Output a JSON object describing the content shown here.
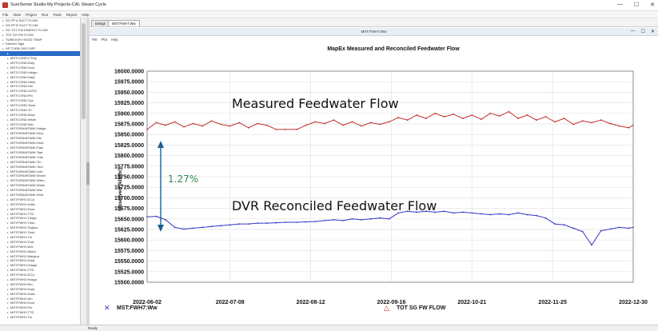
{
  "window": {
    "title": "SureSense Studio-My Projects-CAL Steam Cycle",
    "minimize": "—",
    "maximize": "☐",
    "close": "✕"
  },
  "menu": [
    "File",
    "View",
    "Project",
    "Run",
    "Tools",
    "Report",
    "Help"
  ],
  "tree": {
    "items": [
      {
        "label": "SG PP A SUCT FLOW",
        "expanded": false,
        "selected": false
      },
      {
        "label": "SG PP B SUCT FLOW",
        "expanded": false,
        "selected": false
      },
      {
        "label": "SG TOT FW ENERGY FLOW",
        "expanded": false,
        "selected": false
      },
      {
        "label": "TOT SG FW FLOW",
        "expanded": false,
        "selected": false
      },
      {
        "label": "TURB EXH HOOD TEMP",
        "expanded": false,
        "selected": false
      },
      {
        "label": "Derived Tags",
        "expanded": true,
        "selected": false
      },
      {
        "label": "HP TURB GRO DIFF",
        "expanded": false,
        "selected": false
      },
      {
        "label": "",
        "expanded": false,
        "selected": true
      },
      {
        "label": "MST:COND:CTmp",
        "expanded": false,
        "selected": false
      },
      {
        "label": "MST:COND:Duty",
        "expanded": false,
        "selected": false
      },
      {
        "label": "MST:COND:Hcur",
        "expanded": false,
        "selected": false
      },
      {
        "label": "MST:COND:Hdsgn",
        "expanded": false,
        "selected": false
      },
      {
        "label": "MST:COND:Hadj",
        "expanded": false,
        "selected": false
      },
      {
        "label": "MST:COND:Hdsh",
        "expanded": false,
        "selected": false
      },
      {
        "label": "MST:COND:Hin",
        "expanded": false,
        "selected": false
      },
      {
        "label": "MST:COND:LMTD",
        "expanded": false,
        "selected": false
      },
      {
        "label": "MST:COND:Pin",
        "expanded": false,
        "selected": false
      },
      {
        "label": "MST:COND:Tps",
        "expanded": false,
        "selected": false
      },
      {
        "label": "MST:COND:Tcsm",
        "expanded": false,
        "selected": false
      },
      {
        "label": "MST:COND:Tri",
        "expanded": false,
        "selected": false
      },
      {
        "label": "MST:COND:Wcw",
        "expanded": false,
        "selected": false
      },
      {
        "label": "MST:COND:Wstm",
        "expanded": false,
        "selected": false
      },
      {
        "label": "MST:COND:Ww",
        "expanded": false,
        "selected": false
      },
      {
        "label": "MST:DRAINTANK:Hdsgn",
        "expanded": false,
        "selected": false
      },
      {
        "label": "MST:DRAINTANK:Hcur",
        "expanded": false,
        "selected": false
      },
      {
        "label": "MST:DRAINTANK:Hin",
        "expanded": false,
        "selected": false
      },
      {
        "label": "MST:DRAINTANK:Hout",
        "expanded": false,
        "selected": false
      },
      {
        "label": "MST:DRAINTANK:Pam",
        "expanded": false,
        "selected": false
      },
      {
        "label": "MST:DRAINTANK:Tsat",
        "expanded": false,
        "selected": false
      },
      {
        "label": "MST:DRAINTANK:Tdrn",
        "expanded": false,
        "selected": false
      },
      {
        "label": "MST:DRAINTANK:Tin",
        "expanded": false,
        "selected": false
      },
      {
        "label": "MST:DRAINTANK:Tout",
        "expanded": false,
        "selected": false
      },
      {
        "label": "MST:DRAINTANK:Uoh",
        "expanded": false,
        "selected": false
      },
      {
        "label": "MST:DRAINTANK:Wcsm",
        "expanded": false,
        "selected": false
      },
      {
        "label": "MST:DRAINTANK:Wdrn",
        "expanded": false,
        "selected": false
      },
      {
        "label": "MST:DRAINTANK:Wstm",
        "expanded": false,
        "selected": false
      },
      {
        "label": "MST:DRAINTANK:Ww",
        "expanded": false,
        "selected": false
      },
      {
        "label": "MST:DRAINTANK:Wxtr",
        "expanded": false,
        "selected": false
      },
      {
        "label": "MST:FWH1:DCA",
        "expanded": false,
        "selected": false
      },
      {
        "label": "MST:FWH1:Hdsh",
        "expanded": false,
        "selected": false
      },
      {
        "label": "MST:FWH1:Hout",
        "expanded": false,
        "selected": false
      },
      {
        "label": "MST:FWH1:TTD",
        "expanded": false,
        "selected": false
      },
      {
        "label": "MST:FWH1:Tdsgn",
        "expanded": false,
        "selected": false
      },
      {
        "label": "MST:FWH1:Tdsh",
        "expanded": false,
        "selected": false
      },
      {
        "label": "MST:FWH1:Tadjcur",
        "expanded": false,
        "selected": false
      },
      {
        "label": "MST:FWH1:Tpsh",
        "expanded": false,
        "selected": false
      },
      {
        "label": "MST:FWH1:Tin",
        "expanded": false,
        "selected": false
      },
      {
        "label": "MST:FWH1:Tout",
        "expanded": false,
        "selected": false
      },
      {
        "label": "MST:FWH1:Ww",
        "expanded": false,
        "selected": false
      },
      {
        "label": "MST:FWH1:Wstm",
        "expanded": false,
        "selected": false
      },
      {
        "label": "MST:FWH1:Wadjcur",
        "expanded": false,
        "selected": false
      },
      {
        "label": "MST:FWH1:Hadj",
        "expanded": false,
        "selected": false
      },
      {
        "label": "MST:FWH1:Hdsgn",
        "expanded": false,
        "selected": false
      },
      {
        "label": "MST:FWH2:TTD",
        "expanded": false,
        "selected": false
      },
      {
        "label": "MST:FWH2:DCA",
        "expanded": false,
        "selected": false
      },
      {
        "label": "MST:FWH2:Hdsgn",
        "expanded": false,
        "selected": false
      },
      {
        "label": "MST:FWH2:Hin",
        "expanded": false,
        "selected": false
      },
      {
        "label": "MST:FWH2:Hadj",
        "expanded": false,
        "selected": false
      },
      {
        "label": "MST:FWH2:Hdsh",
        "expanded": false,
        "selected": false
      },
      {
        "label": "MST:FWH2:Hin",
        "expanded": false,
        "selected": false
      },
      {
        "label": "MST:FWH2:Hout",
        "expanded": false,
        "selected": false
      },
      {
        "label": "MST:FWH2:Pin",
        "expanded": false,
        "selected": false
      },
      {
        "label": "MST:FWH2:TTD",
        "expanded": false,
        "selected": false
      },
      {
        "label": "MST:FWH2:Tin",
        "expanded": false,
        "selected": false
      }
    ]
  },
  "tabs": [
    {
      "label": "Design",
      "active": false
    },
    {
      "label": "MST:FWH7:Ww",
      "active": true
    }
  ],
  "inner_window": {
    "title": "MST:FWH7:Ww",
    "menu": [
      "File",
      "Plot",
      "Help"
    ],
    "minimize": "—",
    "maximize": "☐",
    "close": "✕"
  },
  "status": "Ready",
  "colors": {
    "measured": "#c0302e",
    "reconciled": "#3535c8",
    "annotation_pct": "#2e8b57",
    "arrow": "#1f5f8b",
    "selection": "#2a6bc4"
  },
  "chart_data": {
    "type": "line",
    "title": "MapEx Measured and Reconciled Feedwater Flow",
    "xlabel": "",
    "ylabel": "Observed (klb/hr)",
    "ylim": [
      15500,
      16000
    ],
    "yticks": [
      "16000.0000",
      "15975.0000",
      "15950.0000",
      "15925.0000",
      "15900.0000",
      "15875.0000",
      "15850.0000",
      "15825.0000",
      "15800.0000",
      "15775.0000",
      "15750.0000",
      "15725.0000",
      "15700.0000",
      "15675.0000",
      "15650.0000",
      "15625.0000",
      "15600.0000",
      "15575.0000",
      "15550.0000",
      "15525.0000",
      "15500.0000"
    ],
    "xlim": [
      "2022-06-02",
      "2022-12-30"
    ],
    "xticks": [
      "2022-06-02",
      "2022-07-08",
      "2022-08-12",
      "2022-09-16",
      "2022-10-21",
      "2022-11-25",
      "2022-12-30"
    ],
    "grid": true,
    "legend_position": "bottom",
    "series": [
      {
        "name": "TOT SG FW FLOW",
        "marker": "△",
        "color": "#c0302e",
        "points": [
          [
            "2022-06-02",
            15862
          ],
          [
            "2022-06-06",
            15878
          ],
          [
            "2022-06-10",
            15872
          ],
          [
            "2022-06-14",
            15880
          ],
          [
            "2022-06-18",
            15868
          ],
          [
            "2022-06-22",
            15876
          ],
          [
            "2022-06-26",
            15870
          ],
          [
            "2022-06-30",
            15882
          ],
          [
            "2022-07-04",
            15874
          ],
          [
            "2022-07-08",
            15870
          ],
          [
            "2022-07-12",
            15878
          ],
          [
            "2022-07-16",
            15866
          ],
          [
            "2022-07-20",
            15876
          ],
          [
            "2022-07-24",
            15872
          ],
          [
            "2022-07-28",
            15862
          ],
          [
            "2022-08-01",
            15862
          ],
          [
            "2022-08-06",
            15862
          ],
          [
            "2022-08-10",
            15872
          ],
          [
            "2022-08-14",
            15880
          ],
          [
            "2022-08-18",
            15876
          ],
          [
            "2022-08-22",
            15884
          ],
          [
            "2022-08-26",
            15872
          ],
          [
            "2022-08-30",
            15880
          ],
          [
            "2022-09-03",
            15870
          ],
          [
            "2022-09-07",
            15878
          ],
          [
            "2022-09-11",
            15874
          ],
          [
            "2022-09-15",
            15880
          ],
          [
            "2022-09-19",
            15890
          ],
          [
            "2022-09-23",
            15884
          ],
          [
            "2022-09-27",
            15896
          ],
          [
            "2022-10-01",
            15888
          ],
          [
            "2022-10-05",
            15900
          ],
          [
            "2022-10-09",
            15892
          ],
          [
            "2022-10-13",
            15898
          ],
          [
            "2022-10-17",
            15888
          ],
          [
            "2022-10-21",
            15896
          ],
          [
            "2022-10-25",
            15886
          ],
          [
            "2022-10-29",
            15900
          ],
          [
            "2022-11-02",
            15894
          ],
          [
            "2022-11-06",
            15904
          ],
          [
            "2022-11-10",
            15888
          ],
          [
            "2022-11-14",
            15896
          ],
          [
            "2022-11-18",
            15884
          ],
          [
            "2022-11-22",
            15892
          ],
          [
            "2022-11-26",
            15880
          ],
          [
            "2022-11-30",
            15888
          ],
          [
            "2022-12-04",
            15874
          ],
          [
            "2022-12-08",
            15882
          ],
          [
            "2022-12-12",
            15878
          ],
          [
            "2022-12-16",
            15884
          ],
          [
            "2022-12-20",
            15876
          ],
          [
            "2022-12-24",
            15870
          ],
          [
            "2022-12-28",
            15866
          ],
          [
            "2022-12-30",
            15872
          ]
        ]
      },
      {
        "name": "MST:FWH7:Ww",
        "marker": "✕",
        "color": "#3535c8",
        "points": [
          [
            "2022-06-02",
            15655
          ],
          [
            "2022-06-06",
            15656
          ],
          [
            "2022-06-10",
            15648
          ],
          [
            "2022-06-14",
            15630
          ],
          [
            "2022-06-18",
            15626
          ],
          [
            "2022-06-22",
            15628
          ],
          [
            "2022-06-26",
            15630
          ],
          [
            "2022-06-30",
            15632
          ],
          [
            "2022-07-04",
            15634
          ],
          [
            "2022-07-08",
            15636
          ],
          [
            "2022-07-12",
            15638
          ],
          [
            "2022-07-16",
            15638
          ],
          [
            "2022-07-20",
            15640
          ],
          [
            "2022-07-24",
            15640
          ],
          [
            "2022-07-28",
            15641
          ],
          [
            "2022-08-01",
            15642
          ],
          [
            "2022-08-06",
            15642
          ],
          [
            "2022-08-10",
            15643
          ],
          [
            "2022-08-14",
            15644
          ],
          [
            "2022-08-18",
            15646
          ],
          [
            "2022-08-22",
            15648
          ],
          [
            "2022-08-26",
            15646
          ],
          [
            "2022-08-30",
            15650
          ],
          [
            "2022-09-03",
            15648
          ],
          [
            "2022-09-07",
            15650
          ],
          [
            "2022-09-11",
            15652
          ],
          [
            "2022-09-15",
            15650
          ],
          [
            "2022-09-19",
            15664
          ],
          [
            "2022-09-23",
            15668
          ],
          [
            "2022-09-27",
            15666
          ],
          [
            "2022-10-01",
            15668
          ],
          [
            "2022-10-05",
            15666
          ],
          [
            "2022-10-09",
            15668
          ],
          [
            "2022-10-13",
            15664
          ],
          [
            "2022-10-17",
            15666
          ],
          [
            "2022-10-21",
            15664
          ],
          [
            "2022-10-25",
            15662
          ],
          [
            "2022-10-29",
            15660
          ],
          [
            "2022-11-02",
            15662
          ],
          [
            "2022-11-06",
            15660
          ],
          [
            "2022-11-10",
            15664
          ],
          [
            "2022-11-14",
            15660
          ],
          [
            "2022-11-18",
            15658
          ],
          [
            "2022-11-22",
            15652
          ],
          [
            "2022-11-26",
            15638
          ],
          [
            "2022-11-30",
            15636
          ],
          [
            "2022-12-04",
            15628
          ],
          [
            "2022-12-08",
            15620
          ],
          [
            "2022-12-12",
            15588
          ],
          [
            "2022-12-16",
            15622
          ],
          [
            "2022-12-20",
            15626
          ],
          [
            "2022-12-24",
            15630
          ],
          [
            "2022-12-28",
            15628
          ],
          [
            "2022-12-30",
            15630
          ]
        ]
      }
    ],
    "annotations": [
      {
        "text": "Measured Feedwater Flow"
      },
      {
        "text": "DVR Reconciled Feedwater Flow"
      },
      {
        "text": "1.27%"
      }
    ]
  }
}
